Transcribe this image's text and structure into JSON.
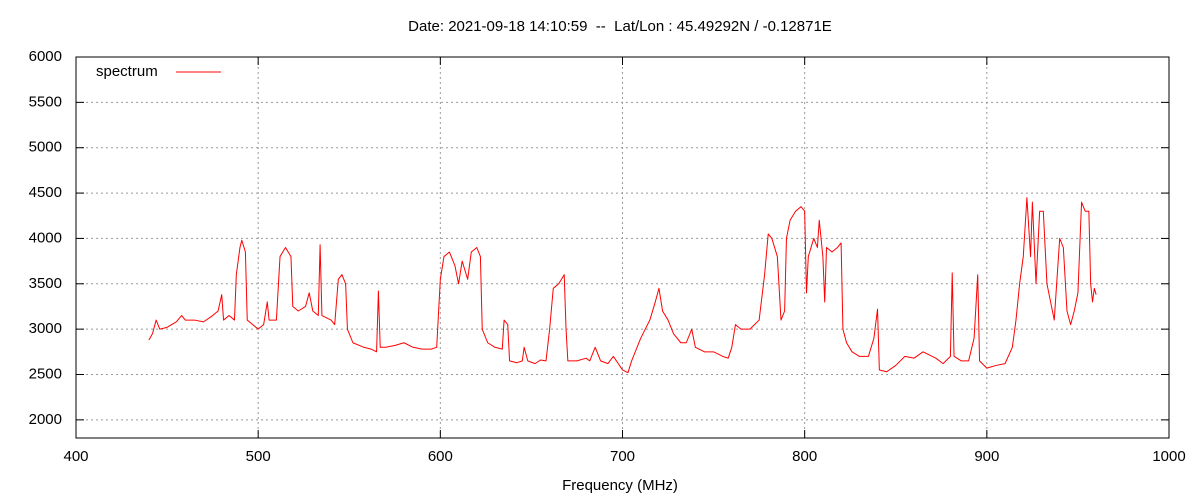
{
  "chart_data": {
    "type": "line",
    "title": "Date: 2021-09-18 14:10:59  --  Lat/Lon : 45.49292N / -0.12871E",
    "x_label": "Frequency (MHz)",
    "x": [
      440,
      442,
      444,
      446,
      450,
      455,
      458,
      460,
      465,
      470,
      475,
      478,
      480,
      481,
      484,
      487,
      488,
      490,
      491,
      493,
      494,
      497,
      500,
      503,
      505,
      506,
      510,
      512,
      515,
      518,
      519,
      522,
      526,
      528,
      530,
      533,
      534,
      535,
      540,
      542,
      544,
      546,
      548,
      549,
      552,
      558,
      562,
      565,
      566,
      567,
      570,
      575,
      580,
      585,
      590,
      595,
      598,
      600,
      602,
      605,
      608,
      610,
      612,
      615,
      617,
      620,
      622,
      623,
      626,
      630,
      634,
      635,
      637,
      638,
      642,
      645,
      646,
      648,
      652,
      655,
      658,
      660,
      662,
      665,
      668,
      669,
      670,
      675,
      680,
      682,
      685,
      688,
      692,
      695,
      700,
      703,
      705,
      710,
      715,
      718,
      720,
      722,
      725,
      728,
      732,
      735,
      738,
      740,
      745,
      750,
      755,
      758,
      760,
      762,
      765,
      770,
      775,
      778,
      780,
      782,
      785,
      787,
      789,
      790,
      792,
      795,
      798,
      800,
      801,
      802,
      805,
      807,
      808,
      810,
      811,
      812,
      815,
      818,
      820,
      821,
      823,
      826,
      830,
      835,
      838,
      840,
      841,
      845,
      850,
      855,
      860,
      865,
      868,
      872,
      876,
      880,
      881,
      882,
      886,
      890,
      893,
      895,
      896,
      900,
      905,
      910,
      914,
      916,
      918,
      920,
      922,
      924,
      925,
      927,
      929,
      931,
      933,
      935,
      937,
      940,
      942,
      944,
      946,
      948,
      950,
      952,
      954,
      956,
      957,
      958,
      959,
      960
    ],
    "series": [
      {
        "name": "spectrum",
        "color": "#ff0000",
        "values": [
          2880,
          2950,
          3100,
          3000,
          3020,
          3080,
          3150,
          3100,
          3100,
          3080,
          3150,
          3200,
          3380,
          3100,
          3150,
          3100,
          3600,
          3900,
          3980,
          3850,
          3100,
          3050,
          3000,
          3050,
          3300,
          3100,
          3100,
          3800,
          3900,
          3800,
          3250,
          3200,
          3250,
          3400,
          3200,
          3150,
          3930,
          3150,
          3100,
          3050,
          3550,
          3600,
          3500,
          3000,
          2850,
          2800,
          2780,
          2750,
          3420,
          2800,
          2800,
          2820,
          2850,
          2800,
          2780,
          2780,
          2800,
          3550,
          3800,
          3850,
          3700,
          3500,
          3750,
          3550,
          3850,
          3900,
          3800,
          3000,
          2850,
          2800,
          2780,
          3100,
          3050,
          2650,
          2630,
          2650,
          2800,
          2650,
          2620,
          2660,
          2650,
          3000,
          3450,
          3500,
          3600,
          3000,
          2650,
          2650,
          2680,
          2650,
          2800,
          2650,
          2620,
          2700,
          2550,
          2520,
          2650,
          2900,
          3100,
          3300,
          3450,
          3200,
          3100,
          2950,
          2850,
          2850,
          3000,
          2800,
          2750,
          2750,
          2700,
          2680,
          2800,
          3050,
          3000,
          3000,
          3100,
          3600,
          4050,
          4000,
          3800,
          3100,
          3200,
          4000,
          4200,
          4300,
          4350,
          4300,
          3400,
          3800,
          4000,
          3900,
          4200,
          3800,
          3300,
          3900,
          3850,
          3900,
          3950,
          3000,
          2850,
          2750,
          2700,
          2700,
          2900,
          3220,
          2550,
          2530,
          2600,
          2700,
          2680,
          2750,
          2720,
          2680,
          2620,
          2700,
          3620,
          2700,
          2650,
          2650,
          2900,
          3600,
          2650,
          2570,
          2600,
          2620,
          2800,
          3100,
          3500,
          3800,
          4450,
          3800,
          4400,
          3500,
          4300,
          4300,
          3500,
          3300,
          3100,
          4000,
          3900,
          3200,
          3050,
          3200,
          3400,
          4400,
          4300,
          4300,
          3500,
          3300,
          3450,
          3380
        ]
      }
    ],
    "xlim": [
      400,
      1000
    ],
    "xticks": [
      400,
      500,
      600,
      700,
      800,
      900,
      1000
    ],
    "ylim": [
      1800,
      6000
    ],
    "yticks": [
      2000,
      2500,
      3000,
      3500,
      4000,
      4500,
      5000,
      5500,
      6000
    ],
    "grid": true,
    "legend": "top-left"
  }
}
